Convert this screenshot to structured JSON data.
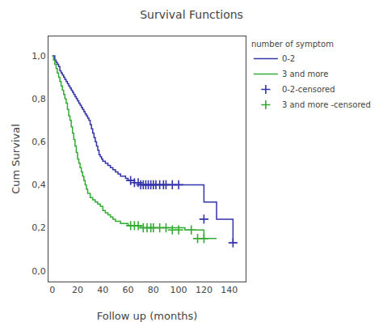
{
  "chart_data": {
    "type": "line",
    "title": "Survival Functions",
    "xlabel": "Follow up (months)",
    "ylabel": "Cum Survival",
    "legend_title": "number of symptom",
    "legend": "right",
    "grid": false,
    "xlim": [
      -3,
      153
    ],
    "ylim": [
      -0.05,
      1.09
    ],
    "xticks": [
      0,
      20,
      40,
      60,
      80,
      100,
      120,
      140
    ],
    "yticks": [
      {
        "value": 0.0,
        "label": "0,0"
      },
      {
        "value": 0.2,
        "label": "0,2"
      },
      {
        "value": 0.4,
        "label": "0,4"
      },
      {
        "value": 0.6,
        "label": "0,6"
      },
      {
        "value": 0.8,
        "label": "0,8"
      },
      {
        "value": 1.0,
        "label": "1,0"
      }
    ],
    "series": [
      {
        "name": "0-2",
        "type": "step",
        "color": "#3333aa",
        "x": [
          0,
          1,
          2,
          3,
          4,
          5,
          6,
          7,
          8,
          9,
          10,
          11,
          12,
          13,
          14,
          15,
          16,
          17,
          18,
          19,
          20,
          21,
          22,
          23,
          24,
          25,
          26,
          27,
          28,
          29,
          30,
          31,
          32,
          33,
          34,
          35,
          36,
          37,
          38,
          39,
          40,
          42,
          44,
          46,
          48,
          50,
          52,
          54,
          56,
          58,
          60,
          62,
          65,
          68,
          70,
          72,
          75,
          78,
          80,
          82,
          85,
          88,
          90,
          95,
          100,
          105,
          110,
          115,
          120,
          122,
          125,
          130,
          140,
          143,
          145
        ],
        "values": [
          1.0,
          1.0,
          0.98,
          0.97,
          0.96,
          0.95,
          0.93,
          0.92,
          0.91,
          0.9,
          0.89,
          0.88,
          0.87,
          0.86,
          0.85,
          0.84,
          0.83,
          0.82,
          0.81,
          0.8,
          0.79,
          0.78,
          0.77,
          0.76,
          0.75,
          0.74,
          0.73,
          0.72,
          0.71,
          0.7,
          0.68,
          0.66,
          0.64,
          0.62,
          0.6,
          0.58,
          0.56,
          0.54,
          0.53,
          0.52,
          0.51,
          0.5,
          0.49,
          0.48,
          0.47,
          0.46,
          0.45,
          0.44,
          0.44,
          0.43,
          0.42,
          0.42,
          0.41,
          0.41,
          0.4,
          0.4,
          0.4,
          0.4,
          0.4,
          0.4,
          0.4,
          0.4,
          0.4,
          0.4,
          0.4,
          0.4,
          0.4,
          0.4,
          0.32,
          0.32,
          0.32,
          0.24,
          0.24,
          0.13,
          0.13
        ]
      },
      {
        "name": "3 and more",
        "type": "step",
        "color": "#33aa33",
        "x": [
          0,
          1,
          2,
          3,
          4,
          5,
          6,
          7,
          8,
          9,
          10,
          11,
          12,
          13,
          14,
          15,
          16,
          17,
          18,
          19,
          20,
          21,
          22,
          23,
          24,
          25,
          26,
          27,
          28,
          30,
          32,
          34,
          36,
          38,
          40,
          42,
          44,
          46,
          48,
          50,
          52,
          54,
          56,
          58,
          60,
          62,
          65,
          68,
          70,
          75,
          80,
          85,
          90,
          95,
          100,
          105,
          110,
          115,
          120,
          125,
          130
        ],
        "values": [
          1.0,
          0.98,
          0.96,
          0.94,
          0.92,
          0.9,
          0.88,
          0.86,
          0.84,
          0.82,
          0.8,
          0.78,
          0.75,
          0.72,
          0.7,
          0.67,
          0.64,
          0.61,
          0.58,
          0.55,
          0.52,
          0.5,
          0.48,
          0.46,
          0.44,
          0.42,
          0.4,
          0.38,
          0.36,
          0.34,
          0.33,
          0.32,
          0.31,
          0.3,
          0.28,
          0.27,
          0.26,
          0.25,
          0.24,
          0.23,
          0.23,
          0.22,
          0.22,
          0.22,
          0.21,
          0.21,
          0.21,
          0.21,
          0.2,
          0.2,
          0.2,
          0.2,
          0.2,
          0.2,
          0.2,
          0.19,
          0.19,
          0.19,
          0.15,
          0.15,
          0.15
        ]
      },
      {
        "name": "0-2-censored",
        "type": "scatter",
        "marker": "plus",
        "color": "#3333aa",
        "x": [
          62,
          65,
          68,
          70,
          72,
          74,
          76,
          78,
          80,
          82,
          85,
          88,
          90,
          95,
          100,
          120,
          143
        ],
        "values": [
          0.42,
          0.41,
          0.41,
          0.4,
          0.4,
          0.4,
          0.4,
          0.4,
          0.4,
          0.4,
          0.4,
          0.4,
          0.4,
          0.4,
          0.4,
          0.24,
          0.13
        ]
      },
      {
        "name": "3 and more -censored",
        "type": "scatter",
        "marker": "plus",
        "color": "#33aa33",
        "x": [
          62,
          65,
          68,
          72,
          75,
          78,
          80,
          85,
          90,
          95,
          100,
          110,
          115,
          120
        ],
        "values": [
          0.21,
          0.21,
          0.21,
          0.2,
          0.2,
          0.2,
          0.2,
          0.2,
          0.2,
          0.19,
          0.19,
          0.19,
          0.15,
          0.15
        ]
      }
    ]
  }
}
